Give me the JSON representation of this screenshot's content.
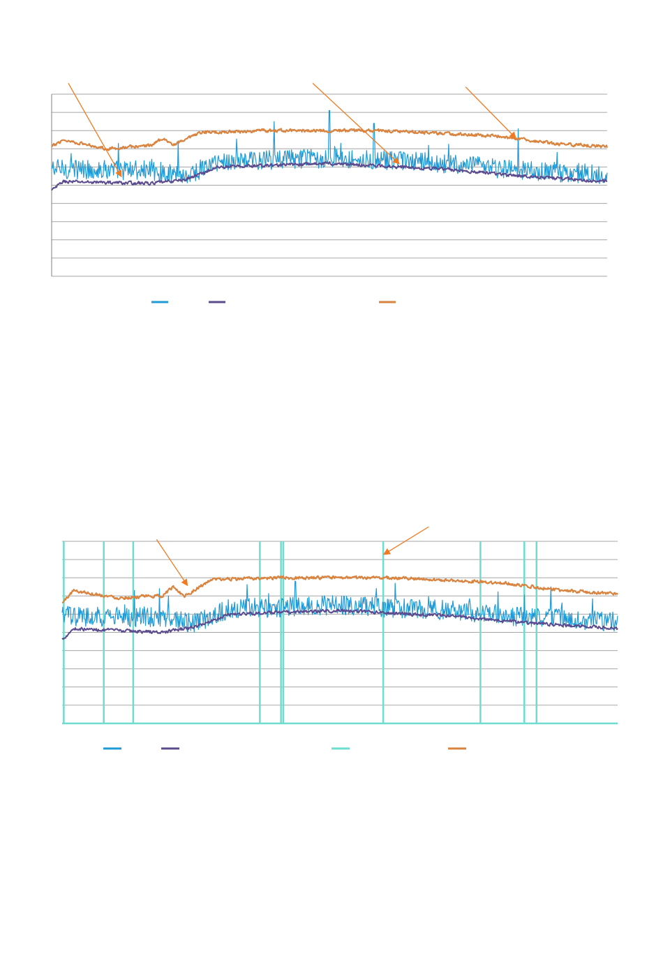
{
  "colors": {
    "blue": "#1f9ad6",
    "purple": "#5b4a8e",
    "orange": "#d9833e",
    "cyan": "#6fdcd0",
    "grid": "#a6a6a6",
    "axis": "#7f7f7f",
    "arrow": "#f07a22"
  },
  "chart_data": [
    {
      "type": "line",
      "grid": true,
      "ylim": [
        0,
        10
      ],
      "yticks": [
        0,
        1,
        2,
        3,
        4,
        5,
        6,
        7,
        8,
        9,
        10
      ],
      "x_points": 800,
      "legend_placement": "bottom",
      "legend_entries": [
        {
          "series": "blue",
          "label": ""
        },
        {
          "series": "purple",
          "label": ""
        },
        {
          "series": "orange",
          "label": ""
        }
      ],
      "series": [
        {
          "key": "blue",
          "color": "#1f9ad6",
          "baseline": [
            [
              0,
              5.9
            ],
            [
              0.18,
              5.8
            ],
            [
              0.24,
              5.5
            ],
            [
              0.3,
              6.3
            ],
            [
              0.5,
              6.5
            ],
            [
              0.7,
              6.2
            ],
            [
              0.85,
              5.8
            ],
            [
              1,
              5.6
            ]
          ],
          "noise": 0.55,
          "spikes": [
            [
              0.5,
              9.1
            ],
            [
              0.4,
              8.5
            ],
            [
              0.58,
              8.4
            ],
            [
              0.84,
              8.1
            ],
            [
              0.12,
              7.3
            ]
          ]
        },
        {
          "key": "purple",
          "color": "#5b4a8e",
          "baseline": [
            [
              0,
              4.7
            ],
            [
              0.02,
              5.2
            ],
            [
              0.18,
              5.1
            ],
            [
              0.24,
              5.3
            ],
            [
              0.3,
              6.0
            ],
            [
              0.5,
              6.2
            ],
            [
              0.7,
              5.9
            ],
            [
              0.85,
              5.5
            ],
            [
              1,
              5.2
            ]
          ],
          "noise": 0.12
        },
        {
          "key": "orange",
          "color": "#d9833e",
          "baseline": [
            [
              0,
              7.1
            ],
            [
              0.02,
              7.5
            ],
            [
              0.1,
              7.0
            ],
            [
              0.18,
              7.2
            ],
            [
              0.2,
              7.6
            ],
            [
              0.22,
              7.2
            ],
            [
              0.27,
              7.9
            ],
            [
              0.4,
              8.0
            ],
            [
              0.6,
              8.0
            ],
            [
              0.8,
              7.7
            ],
            [
              0.9,
              7.3
            ],
            [
              1,
              7.1
            ]
          ],
          "noise": 0.12
        }
      ],
      "annotations": [
        {
          "arrow_from": [
            0.03,
            10.6
          ],
          "arrow_to": [
            0.125,
            5.5
          ]
        },
        {
          "arrow_from": [
            0.47,
            10.6
          ],
          "arrow_to": [
            0.625,
            6.2
          ]
        },
        {
          "arrow_from": [
            0.745,
            10.4
          ],
          "arrow_to": [
            0.835,
            7.6
          ]
        }
      ]
    },
    {
      "type": "line",
      "grid": true,
      "ylim": [
        0,
        10
      ],
      "yticks": [
        0,
        1,
        2,
        3,
        4,
        5,
        6,
        7,
        8,
        9,
        10
      ],
      "x_points": 800,
      "legend_placement": "bottom",
      "legend_entries": [
        {
          "series": "blue",
          "label": ""
        },
        {
          "series": "purple",
          "label": ""
        },
        {
          "series": "cyan",
          "label": ""
        },
        {
          "series": "orange",
          "label": ""
        }
      ],
      "vertical_markers_x": [
        0.003,
        0.075,
        0.128,
        0.356,
        0.394,
        0.398,
        0.578,
        0.753,
        0.832,
        0.854
      ],
      "series": [
        {
          "key": "blue",
          "color": "#1f9ad6",
          "baseline": [
            [
              0,
              5.9
            ],
            [
              0.18,
              5.8
            ],
            [
              0.24,
              5.5
            ],
            [
              0.3,
              6.3
            ],
            [
              0.5,
              6.5
            ],
            [
              0.7,
              6.2
            ],
            [
              0.85,
              5.8
            ],
            [
              1,
              5.6
            ]
          ],
          "noise": 0.55,
          "spikes": [
            [
              0.42,
              7.8
            ],
            [
              0.6,
              7.7
            ],
            [
              0.88,
              7.5
            ],
            [
              0.13,
              7.3
            ]
          ]
        },
        {
          "key": "purple",
          "color": "#5b4a8e",
          "baseline": [
            [
              0,
              4.6
            ],
            [
              0.02,
              5.2
            ],
            [
              0.18,
              5.0
            ],
            [
              0.24,
              5.3
            ],
            [
              0.3,
              6.0
            ],
            [
              0.5,
              6.2
            ],
            [
              0.7,
              5.9
            ],
            [
              0.85,
              5.5
            ],
            [
              1,
              5.2
            ]
          ],
          "noise": 0.12
        },
        {
          "key": "orange",
          "color": "#d9833e",
          "baseline": [
            [
              0,
              6.6
            ],
            [
              0.02,
              7.3
            ],
            [
              0.1,
              6.9
            ],
            [
              0.18,
              7.0
            ],
            [
              0.2,
              7.5
            ],
            [
              0.22,
              7.0
            ],
            [
              0.27,
              7.9
            ],
            [
              0.4,
              8.0
            ],
            [
              0.6,
              8.0
            ],
            [
              0.8,
              7.7
            ],
            [
              0.9,
              7.3
            ],
            [
              1,
              7.1
            ]
          ],
          "noise": 0.12
        }
      ],
      "annotations": [
        {
          "arrow_from": [
            0.17,
            10.1
          ],
          "arrow_to": [
            0.225,
            7.6
          ]
        },
        {
          "arrow_from": [
            0.66,
            10.8
          ],
          "arrow_to": [
            0.58,
            9.3
          ]
        }
      ]
    }
  ]
}
